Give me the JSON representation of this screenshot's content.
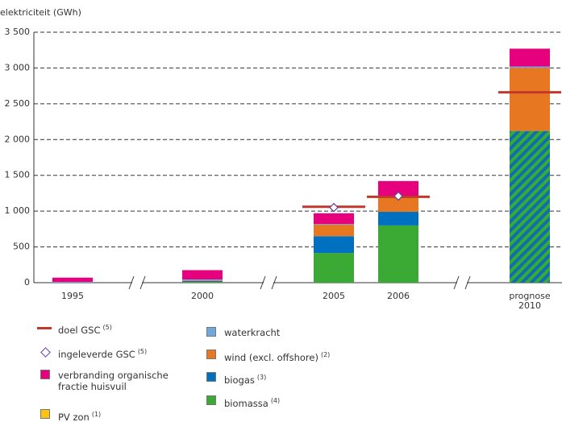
{
  "chart_data": {
    "type": "bar",
    "stacked": true,
    "y_label": "elektriciteit (GWh)",
    "categories": [
      "1995",
      "2000",
      "2005",
      "2006",
      "prognose 2010"
    ],
    "ylim": [
      0,
      3500
    ],
    "yticks": [
      0,
      500,
      {
        "value": 1000,
        "label": "1 000"
      },
      {
        "value": 1500,
        "label": "1 500"
      },
      {
        "value": 2000,
        "label": "2 000"
      },
      {
        "value": 2500,
        "label": "2 500"
      },
      {
        "value": 3000,
        "label": "3 000"
      },
      {
        "value": 3500,
        "label": "3 500"
      }
    ],
    "grid": true,
    "series": [
      {
        "name": "biomassa",
        "note": "(4)",
        "color": "#3aaa35",
        "hatch_color": "#0b6fb0",
        "hatched": [
          false,
          false,
          false,
          false,
          true
        ],
        "values": [
          0,
          10,
          415,
          800,
          2120
        ]
      },
      {
        "name": "biogas",
        "note": "(3)",
        "color": "#0070c0",
        "values": [
          0,
          15,
          235,
          190,
          0
        ]
      },
      {
        "name": "wind (excl. offshore)",
        "note": "(2)",
        "color": "#e87722",
        "values": [
          0,
          10,
          160,
          210,
          880
        ]
      },
      {
        "name": "waterkracht",
        "color": "#6fa8dc",
        "values": [
          10,
          10,
          10,
          10,
          20
        ]
      },
      {
        "name": "verbranding organische fractie huisvuil",
        "color": "#e6007e",
        "values": [
          60,
          130,
          150,
          210,
          250
        ]
      },
      {
        "name": "PV zon",
        "note": "(1)",
        "color": "#ffc20e",
        "values": [
          0,
          0,
          0,
          0,
          0
        ]
      }
    ],
    "target": {
      "name": "doel GSC",
      "note": "(5)",
      "color": "#c0392b",
      "values": [
        null,
        null,
        1060,
        1200,
        2660
      ]
    },
    "delivered": {
      "name": "ingeleverde GSC",
      "note": "(5)",
      "color": "#6a3d9a",
      "values": [
        null,
        null,
        1050,
        1210,
        null
      ]
    }
  }
}
